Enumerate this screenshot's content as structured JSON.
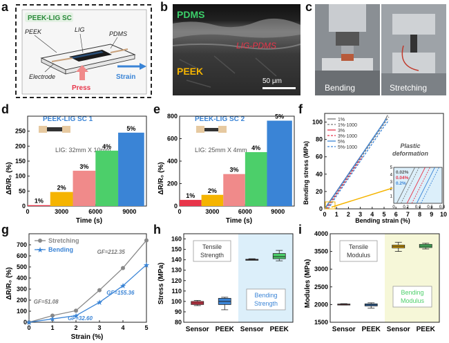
{
  "panels": {
    "a": {
      "letter": "a",
      "title": "PEEK-LIG SC",
      "labels": {
        "peek": "PEEK",
        "lig": "LIG",
        "pdms": "PDMS",
        "electrode": "Electrode",
        "press": "Press",
        "strain": "Strain"
      }
    },
    "b": {
      "letter": "b",
      "pdms": "PDMS",
      "lig_pdms": "LIG-PDMS",
      "peek": "PEEK",
      "scale": "50 μm"
    },
    "c": {
      "letter": "c",
      "bending": "Bending",
      "stretching": "Stretching"
    },
    "d": {
      "letter": "d",
      "title": "PEEK-LIG SC 1",
      "lig_size": "LIG: 32mm X 10mm",
      "ylabel": "ΔR/R₀ (%)",
      "xlabel": "Time (s)"
    },
    "e": {
      "letter": "e",
      "title": "PEEK-LIG SC 2",
      "lig_size": "LIG: 25mm X 4mm",
      "ylabel": "ΔR/R₀ (%)",
      "xlabel": "Time (s)"
    },
    "f": {
      "letter": "f",
      "xlabel": "Bending strain (%)",
      "ylabel": "Bending stress (MPa)",
      "annotation": "Plastic deformation",
      "inset_labels": [
        "0.02%",
        "0.04%",
        "0.2%"
      ]
    },
    "g": {
      "letter": "g",
      "xlabel": "Strain (%)",
      "ylabel": "ΔR/R₀ (%)",
      "gf_labels": [
        "GF=212.35",
        "GF=51.08",
        "GF=155.36",
        "GF=32.60"
      ]
    },
    "h": {
      "letter": "h",
      "ylabel": "Stress (MPa)",
      "tensile": "Tensile Strength",
      "bending": "Bending Strength",
      "cats": [
        "Sensor",
        "PEEK",
        "Sensor",
        "PEEK"
      ]
    },
    "i": {
      "letter": "i",
      "ylabel": "Modules (MPa)",
      "tensile": "Tensile Modulus",
      "bending": "Bending Modulus",
      "cats": [
        "Sensor",
        "PEEK",
        "Sensor",
        "PEEK"
      ]
    }
  },
  "chart_data": [
    {
      "id": "d",
      "type": "bar",
      "xlim": [
        0,
        10500
      ],
      "ylim": [
        0,
        300
      ],
      "xticks": [
        0,
        3000,
        6000,
        9000
      ],
      "yticks": [
        0,
        50,
        100,
        150,
        200,
        250
      ],
      "series": [
        {
          "name": "1%",
          "start": 0,
          "end": 2000,
          "value": 3,
          "color": "#e8354a"
        },
        {
          "name": "2%",
          "start": 2000,
          "end": 4000,
          "value": 47,
          "color": "#f5b400"
        },
        {
          "name": "3%",
          "start": 4000,
          "end": 6000,
          "value": 118,
          "color": "#f08a8a"
        },
        {
          "name": "4%",
          "start": 6000,
          "end": 8000,
          "value": 185,
          "color": "#4ccf6a"
        },
        {
          "name": "5%",
          "start": 8000,
          "end": 10300,
          "value": 245,
          "color": "#3a84d6"
        }
      ]
    },
    {
      "id": "e",
      "type": "bar",
      "xlim": [
        0,
        10500
      ],
      "ylim": [
        0,
        800
      ],
      "xticks": [
        0,
        3000,
        6000,
        9000
      ],
      "yticks": [
        0,
        200,
        400,
        600,
        800
      ],
      "series": [
        {
          "name": "1%",
          "start": 0,
          "end": 2000,
          "value": 55,
          "color": "#e8354a"
        },
        {
          "name": "2%",
          "start": 2000,
          "end": 4000,
          "value": 100,
          "color": "#f5b400"
        },
        {
          "name": "3%",
          "start": 4000,
          "end": 6000,
          "value": 285,
          "color": "#f08a8a"
        },
        {
          "name": "4%",
          "start": 6000,
          "end": 8000,
          "value": 480,
          "color": "#4ccf6a"
        },
        {
          "name": "5%",
          "start": 8000,
          "end": 10300,
          "value": 760,
          "color": "#3a84d6"
        }
      ]
    },
    {
      "id": "f",
      "type": "line",
      "xlim": [
        0,
        10
      ],
      "ylim": [
        0,
        110
      ],
      "xticks": [
        0,
        1,
        2,
        3,
        4,
        5,
        6,
        7,
        8,
        9,
        10
      ],
      "yticks": [
        0,
        20,
        40,
        60,
        80,
        100
      ],
      "legend": [
        "1%",
        "1%-1000",
        "3%",
        "3%-1000",
        "5%",
        "5%-1000"
      ],
      "series": [
        {
          "name": "1%",
          "color": "#777777",
          "dash": false,
          "x": [
            0,
            1,
            2,
            3,
            4,
            5,
            5.3
          ],
          "y": [
            0,
            20,
            40,
            60,
            80,
            100,
            108
          ]
        },
        {
          "name": "1%-1000",
          "color": "#777777",
          "dash": true,
          "x": [
            0.1,
            1,
            2,
            3,
            4,
            5,
            5.4
          ],
          "y": [
            0,
            18,
            38,
            58,
            78,
            98,
            106
          ]
        },
        {
          "name": "3%",
          "color": "#e8354a",
          "dash": false,
          "x": [
            0,
            1,
            2,
            3,
            3.1
          ],
          "y": [
            0,
            20,
            40,
            60,
            62
          ]
        },
        {
          "name": "3%-1000",
          "color": "#e8354a",
          "dash": true,
          "x": [
            0.2,
            1,
            2,
            3,
            3.2
          ],
          "y": [
            0,
            17,
            37,
            57,
            60
          ]
        },
        {
          "name": "5%",
          "color": "#3a84d6",
          "dash": false,
          "x": [
            0,
            1,
            2,
            3,
            4,
            5,
            5.2
          ],
          "y": [
            0,
            20,
            40,
            60,
            80,
            100,
            104
          ]
        },
        {
          "name": "5%-1000",
          "color": "#3a84d6",
          "dash": true,
          "x": [
            0.3,
            1,
            2,
            3,
            4,
            5,
            5.4
          ],
          "y": [
            0,
            15,
            35,
            55,
            75,
            95,
            102
          ]
        }
      ],
      "inset": {
        "xlim": [
          0,
          0.8
        ],
        "ylim": [
          0,
          5
        ],
        "xticks": [
          0,
          0.2,
          0.4,
          0.6,
          0.8
        ],
        "yticks": [
          1,
          2,
          3,
          4,
          5
        ]
      }
    },
    {
      "id": "g",
      "type": "line",
      "xlim": [
        0,
        5
      ],
      "ylim": [
        0,
        800
      ],
      "xticks": [
        0,
        1,
        2,
        3,
        4,
        5
      ],
      "yticks": [
        0,
        100,
        200,
        300,
        400,
        500,
        600,
        700
      ],
      "legend": [
        "Stretching",
        "Bending"
      ],
      "series": [
        {
          "name": "Stretching",
          "color": "#888888",
          "marker": "circle",
          "x": [
            0,
            1,
            2,
            3,
            4,
            5
          ],
          "y": [
            0,
            60,
            105,
            290,
            490,
            740
          ]
        },
        {
          "name": "Bending",
          "color": "#3a84d6",
          "marker": "star",
          "x": [
            0,
            1,
            2,
            3,
            4,
            5
          ],
          "y": [
            0,
            30,
            60,
            180,
            330,
            520
          ]
        }
      ]
    },
    {
      "id": "h",
      "type": "box",
      "ylim": [
        80,
        165
      ],
      "yticks": [
        80,
        90,
        100,
        110,
        120,
        130,
        140,
        150,
        160
      ],
      "boxes": [
        {
          "cat": "Sensor",
          "min": 96,
          "q1": 97,
          "median": 98.5,
          "q3": 100,
          "max": 101,
          "color": "#e8354a"
        },
        {
          "cat": "PEEK",
          "min": 92,
          "q1": 97,
          "median": 100,
          "q3": 103,
          "max": 104,
          "color": "#3a84d6"
        },
        {
          "cat": "Sensor",
          "min": 140,
          "q1": 140,
          "median": 140,
          "q3": 140.5,
          "max": 141,
          "color": "#e8354a"
        },
        {
          "cat": "PEEK",
          "min": 139,
          "q1": 141,
          "median": 143,
          "q3": 146,
          "max": 149,
          "color": "#4ccf6a"
        }
      ]
    },
    {
      "id": "i",
      "type": "box",
      "ylim": [
        1500,
        4000
      ],
      "yticks": [
        1500,
        2000,
        2500,
        3000,
        3500,
        4000
      ],
      "boxes": [
        {
          "cat": "Sensor",
          "min": 1985,
          "q1": 1995,
          "median": 2005,
          "q3": 2015,
          "max": 2025,
          "color": "#e8354a"
        },
        {
          "cat": "PEEK",
          "min": 1900,
          "q1": 1960,
          "median": 1990,
          "q3": 2020,
          "max": 2050,
          "color": "#3a84d6"
        },
        {
          "cat": "Sensor",
          "min": 3500,
          "q1": 3600,
          "median": 3640,
          "q3": 3680,
          "max": 3760,
          "color": "#f5b400"
        },
        {
          "cat": "PEEK",
          "min": 3570,
          "q1": 3610,
          "median": 3650,
          "q3": 3700,
          "max": 3730,
          "color": "#4ccf6a"
        }
      ]
    }
  ]
}
